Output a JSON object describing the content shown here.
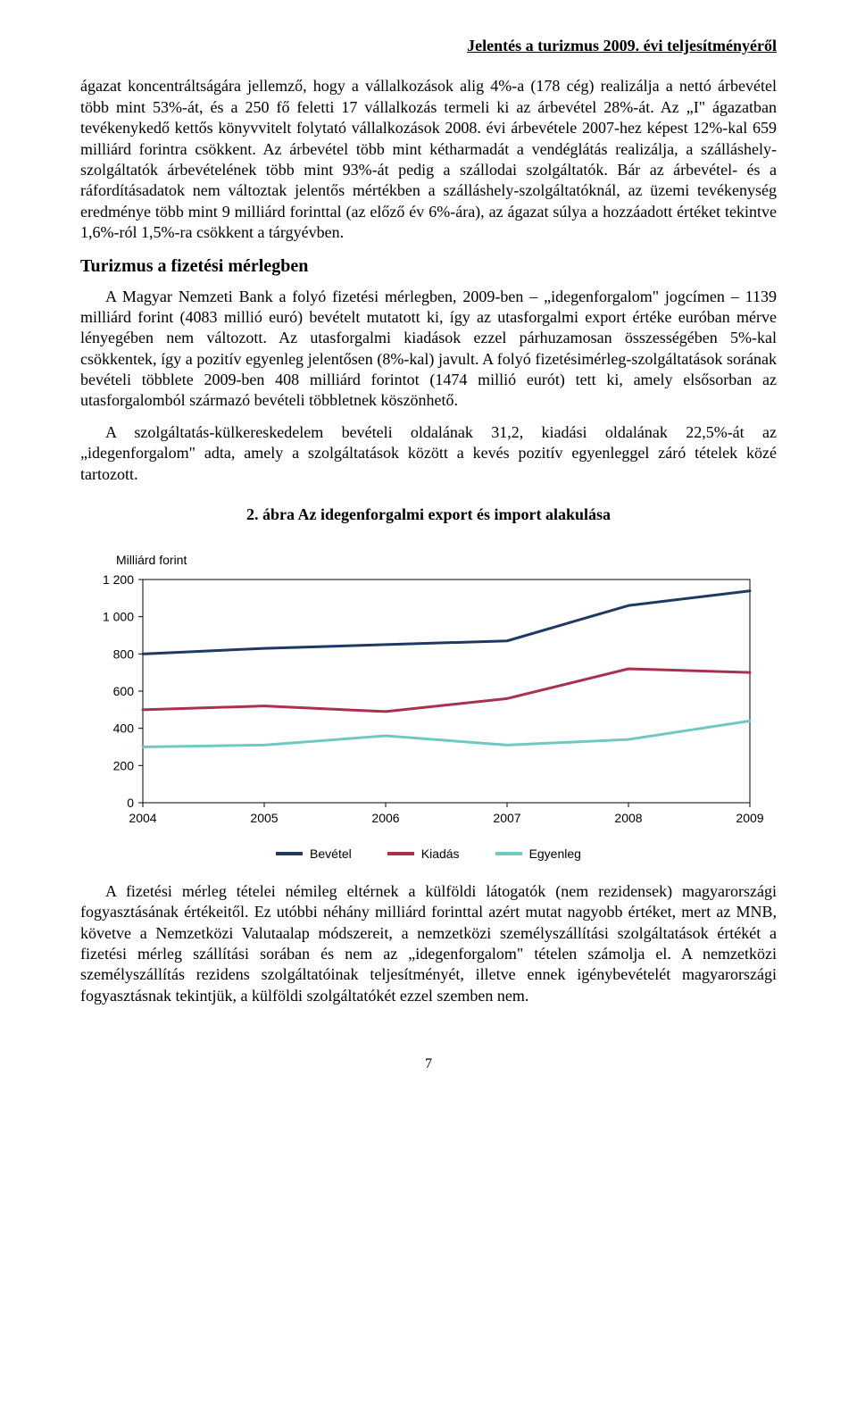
{
  "header": "Jelentés a turizmus 2009. évi teljesítményéről",
  "para1": "ágazat koncentráltságára jellemző, hogy a vállalkozások alig 4%-a (178 cég) realizálja a nettó árbevétel több mint 53%-át, és a 250 fő feletti 17 vállalkozás termeli ki az árbevétel 28%-át. Az „I\" ágazatban tevékenykedő kettős könyvvitelt folytató vállalkozások 2008. évi árbevétele 2007-hez képest 12%-kal 659 milliárd forintra csökkent. Az árbevétel több mint kétharmadát a vendéglátás realizálja, a szálláshely-szolgáltatók árbevételének több mint 93%-át pedig a szállodai szolgáltatók. Bár az árbevétel- és a ráfordításadatok nem változtak jelentős mértékben a szálláshely-szolgáltatóknál, az üzemi tevékenység eredménye több mint 9 milliárd forinttal (az előző év 6%-ára), az ágazat súlya a hozzáadott értéket tekintve 1,6%-ról 1,5%-ra csökkent a tárgyévben.",
  "section_title": "Turizmus a fizetési mérlegben",
  "para2": "A Magyar Nemzeti Bank a folyó fizetési mérlegben, 2009-ben – „idegenforgalom\" jogcímen – 1139 milliárd forint (4083 millió euró) bevételt mutatott ki, így az utasforgalmi export értéke euróban mérve lényegében nem változott.  Az utasforgalmi kiadások ezzel párhuzamosan összességében 5%-kal csökkentek, így a pozitív egyenleg jelentősen (8%-kal) javult. A folyó fizetésimérleg-szolgáltatások sorának bevételi többlete 2009-ben 408 milliárd forintot (1474 millió eurót) tett ki, amely elsősorban az utasforgalomból származó bevételi többletnek köszönhető.",
  "para3": "A szolgáltatás-külkereskedelem bevételi oldalának 31,2, kiadási oldalának 22,5%-át az „idegenforgalom\" adta, amely a szolgáltatások között a kevés pozitív egyenleggel záró tételek közé tartozott.",
  "figure_title": "2. ábra Az idegenforgalmi export és import alakulása",
  "chart": {
    "type": "line",
    "y_title": "Milliárd forint",
    "x_categories": [
      "2004",
      "2005",
      "2006",
      "2007",
      "2008",
      "2009"
    ],
    "y_ticks": [
      0,
      200,
      400,
      600,
      800,
      1000,
      1200
    ],
    "y_tick_labels": [
      "0",
      "200",
      "400",
      "600",
      "800",
      "1 000",
      "1 200"
    ],
    "ylim": [
      0,
      1200
    ],
    "background_color": "#ffffff",
    "grid_color": "#000000",
    "line_width": 3,
    "series": [
      {
        "name": "Bevétel",
        "color": "#1f3a62",
        "values": [
          800,
          830,
          850,
          870,
          1060,
          1139
        ]
      },
      {
        "name": "Kiadás",
        "color": "#a8324e",
        "values": [
          500,
          520,
          490,
          560,
          720,
          700
        ]
      },
      {
        "name": "Egyenleg",
        "color": "#6fc9c2",
        "values": [
          300,
          310,
          360,
          310,
          340,
          440
        ]
      }
    ]
  },
  "para4": "A fizetési mérleg tételei némileg eltérnek a külföldi látogatók (nem rezidensek) magyarországi fogyasztásának értékeitől. Ez utóbbi néhány milliárd forinttal azért mutat nagyobb értéket, mert az MNB, követve a Nemzetközi Valutaalap módszereit, a nemzetközi személyszállítási szolgáltatások értékét a fizetési mérleg szállítási sorában és nem az „idegenforgalom\" tételen számolja el. A nemzetközi személyszállítás rezidens szolgáltatóinak teljesítményét, illetve ennek igénybevételét magyarországi fogyasztásnak tekintjük, a külföldi szolgáltatókét ezzel szemben nem.",
  "page_number": "7"
}
